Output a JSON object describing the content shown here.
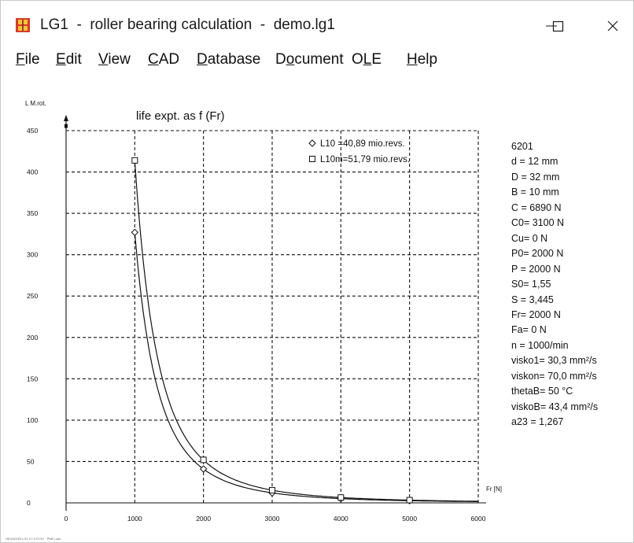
{
  "window": {
    "title": "LG1  -  roller bearing calculation  -  demo.lg1",
    "minimize_label": "—",
    "maximize_label": "☐",
    "close_label": "✕"
  },
  "menu": [
    {
      "label": "File",
      "ul": 0
    },
    {
      "label": "Edit",
      "ul": 0
    },
    {
      "label": "View",
      "ul": 0
    },
    {
      "label": "CAD",
      "ul": 0
    },
    {
      "label": "Database",
      "ul": 0
    },
    {
      "label": "Document",
      "ul": 1
    },
    {
      "label": "OLE",
      "ul": 1
    },
    {
      "label": "Help",
      "ul": 0
    }
  ],
  "chart_data": {
    "type": "line",
    "title": "life expt. as f (Fr)",
    "ylabel": "L M.rot.",
    "xlabel": "Fr [N]",
    "xlim": [
      0,
      6000
    ],
    "ylim": [
      0,
      450
    ],
    "x_ticks": [
      0,
      1000,
      2000,
      3000,
      4000,
      5000,
      6000
    ],
    "y_ticks": [
      0,
      50,
      100,
      150,
      200,
      250,
      300,
      350,
      400,
      450
    ],
    "grid": true,
    "legend_position": "top-right",
    "series": [
      {
        "name": "L10 =40,89 mio.revs.",
        "marker": "diamond",
        "x": [
          1000,
          1200,
          1400,
          1600,
          1800,
          2000,
          2500,
          3000,
          3500,
          4000,
          4500,
          5000,
          5500,
          6000
        ],
        "y": [
          327,
          189,
          119,
          80,
          56,
          41,
          21,
          12,
          7.6,
          5.1,
          3.6,
          2.6,
          2.0,
          1.5
        ],
        "marker_x": [
          1000,
          2000,
          3000,
          4000,
          5000
        ],
        "marker_y": [
          327,
          41,
          12,
          5.1,
          2.6
        ]
      },
      {
        "name": "L10m=51,79 mio.revs.",
        "marker": "square",
        "x": [
          1000,
          1200,
          1400,
          1600,
          1800,
          2000,
          2500,
          3000,
          3500,
          4000,
          4500,
          5000,
          5500,
          6000
        ],
        "y": [
          414,
          240,
          151,
          101,
          71,
          52,
          26.5,
          15.3,
          9.7,
          6.5,
          4.5,
          3.3,
          2.5,
          1.9
        ],
        "marker_x": [
          1000,
          2000,
          3000,
          4000,
          5000
        ],
        "marker_y": [
          414,
          52,
          15.3,
          6.5,
          3.3
        ]
      }
    ]
  },
  "bearing_info": [
    "6201",
    "d = 12 mm",
    "D = 32 mm",
    "B = 10 mm",
    "C = 6890 N",
    "C0= 3100 N",
    "Cu= 0 N",
    "P0= 2000 N",
    "P = 2000 N",
    "S0= 1,55",
    "S = 3,445",
    "Fr= 2000 N",
    "Fa= 0 N",
    "n = 1000/min",
    "visko1= 30,3 mm²/s",
    "viskon= 70,0 mm²/s",
    "thetaB= 50 °C",
    "viskoB= 43,4 mm²/s",
    "a23 = 1,267"
  ],
  "footer_note": "HEXAGON LG1 V7.0 07/07 · Phill Luan"
}
